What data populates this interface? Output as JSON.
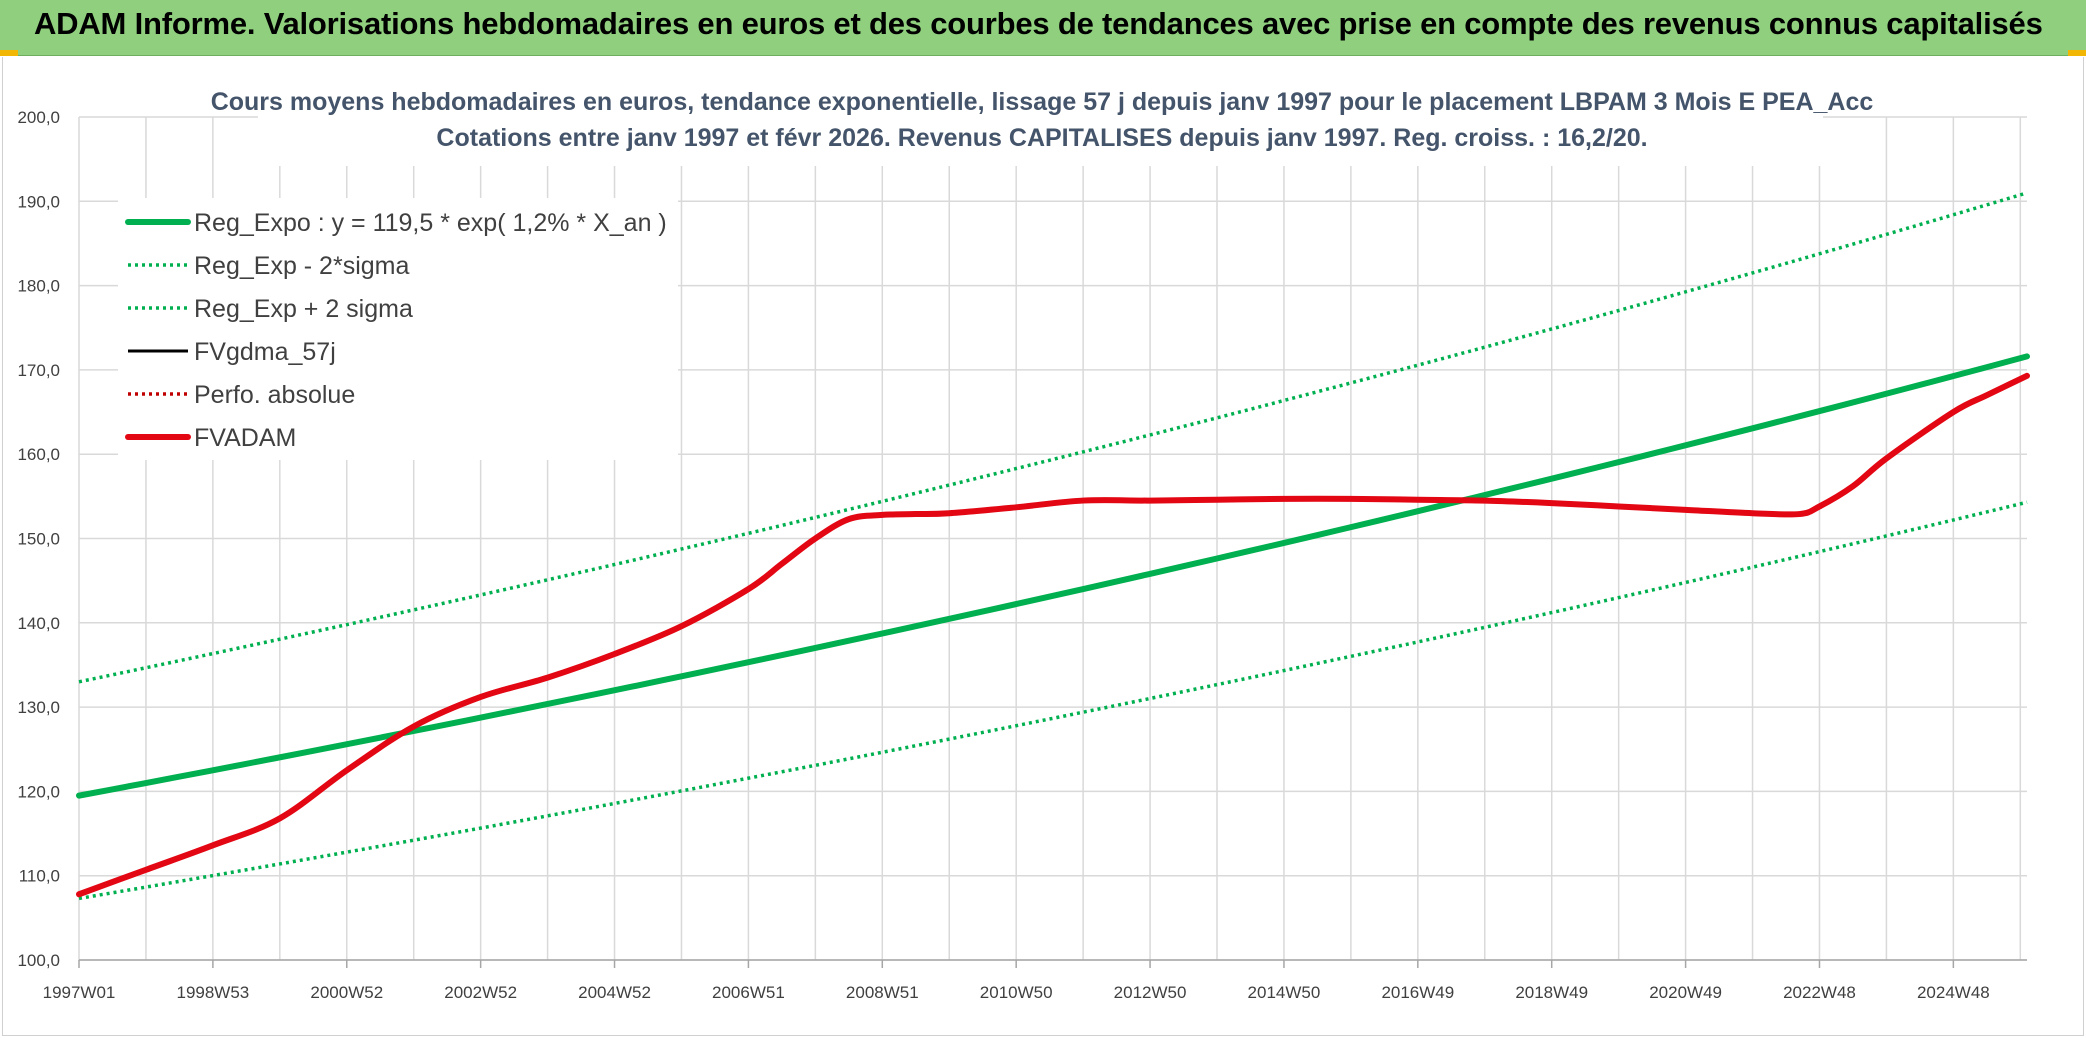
{
  "header": {
    "title": "ADAM Informe. Valorisations hebdomadaires en euros et des courbes de tendances avec prise en compte des revenus connus capitalisés"
  },
  "colors": {
    "header_bg": "#8fcf7d",
    "reg": "#00b050",
    "fvadam": "#e30613",
    "fvgdma": "#000000",
    "perfo": "#c00000",
    "grid": "#d9d9d9"
  },
  "chart_data": {
    "type": "line",
    "title_lines": [
      "Cours moyens hebdomadaires en euros, tendance exponentielle, lissage 57 j depuis janv 1997 pour le placement LBPAM 3 Mois E PEA_Acc",
      "Cotations entre janv 1997 et févr 2026. Revenus CAPITALISES depuis janv 1997. Reg. croiss. : 16,2/20."
    ],
    "xlabel": "",
    "ylabel": "",
    "ylim": [
      100,
      200
    ],
    "y_ticks": [
      "100,0",
      "110,0",
      "120,0",
      "130,0",
      "140,0",
      "150,0",
      "160,0",
      "170,0",
      "180,0",
      "190,0",
      "200,0"
    ],
    "x_range_years": [
      1997.0,
      2026.1
    ],
    "x_tick_labels": [
      "1997W01",
      "1998W53",
      "2000W52",
      "2002W52",
      "2004W52",
      "2006W51",
      "2008W51",
      "2010W50",
      "2012W50",
      "2014W50",
      "2016W49",
      "2018W49",
      "2020W49",
      "2022W48",
      "2024W48"
    ],
    "x_tick_years": [
      1997,
      1999,
      2001,
      2003,
      2005,
      2007,
      2009,
      2011,
      2013,
      2015,
      2017,
      2019,
      2021,
      2023,
      2025
    ],
    "grid": true,
    "legend_position": "top-left",
    "series": [
      {
        "name": "Reg_Expo : y = 119,5 * exp( 1,2% *  X_an )",
        "style": "solid-thick",
        "color": "#00b050",
        "x": [
          1997.0,
          2026.1
        ],
        "y": [
          119.5,
          171.6
        ]
      },
      {
        "name": "Reg_Exp - 2*sigma",
        "style": "dotted",
        "color": "#00b050",
        "x": [
          1997.0,
          2026.1
        ],
        "y": [
          107.3,
          154.3
        ]
      },
      {
        "name": "Reg_Exp + 2 sigma",
        "style": "dotted",
        "color": "#00b050",
        "x": [
          1997.0,
          2026.1
        ],
        "y": [
          133.0,
          191.0
        ]
      },
      {
        "name": "FVgdma_57j",
        "style": "solid",
        "color": "#000000",
        "x": [],
        "y": []
      },
      {
        "name": "Perfo. absolue",
        "style": "dotted",
        "color": "#c00000",
        "x": [],
        "y": []
      },
      {
        "name": "FVADAM",
        "style": "solid-thick",
        "color": "#e30613",
        "x": [
          1997.0,
          1998.0,
          1999.0,
          2000.0,
          2001.0,
          2002.0,
          2003.0,
          2004.0,
          2005.0,
          2006.0,
          2007.0,
          2007.5,
          2008.0,
          2008.5,
          2009.0,
          2009.5,
          2010.0,
          2011.0,
          2012.0,
          2013.0,
          2014.0,
          2015.0,
          2016.0,
          2017.0,
          2018.0,
          2019.0,
          2020.0,
          2021.0,
          2022.0,
          2022.7,
          2023.0,
          2023.5,
          2024.0,
          2025.0,
          2025.5,
          2026.1
        ],
        "y": [
          107.8,
          110.7,
          113.6,
          116.8,
          122.5,
          127.7,
          131.2,
          133.5,
          136.3,
          139.6,
          144.0,
          147.0,
          150.0,
          152.3,
          152.8,
          152.9,
          153.0,
          153.7,
          154.5,
          154.5,
          154.6,
          154.7,
          154.7,
          154.6,
          154.5,
          154.2,
          153.8,
          153.4,
          153.0,
          152.9,
          153.8,
          156.2,
          159.5,
          165.0,
          167.0,
          169.3
        ]
      }
    ]
  }
}
